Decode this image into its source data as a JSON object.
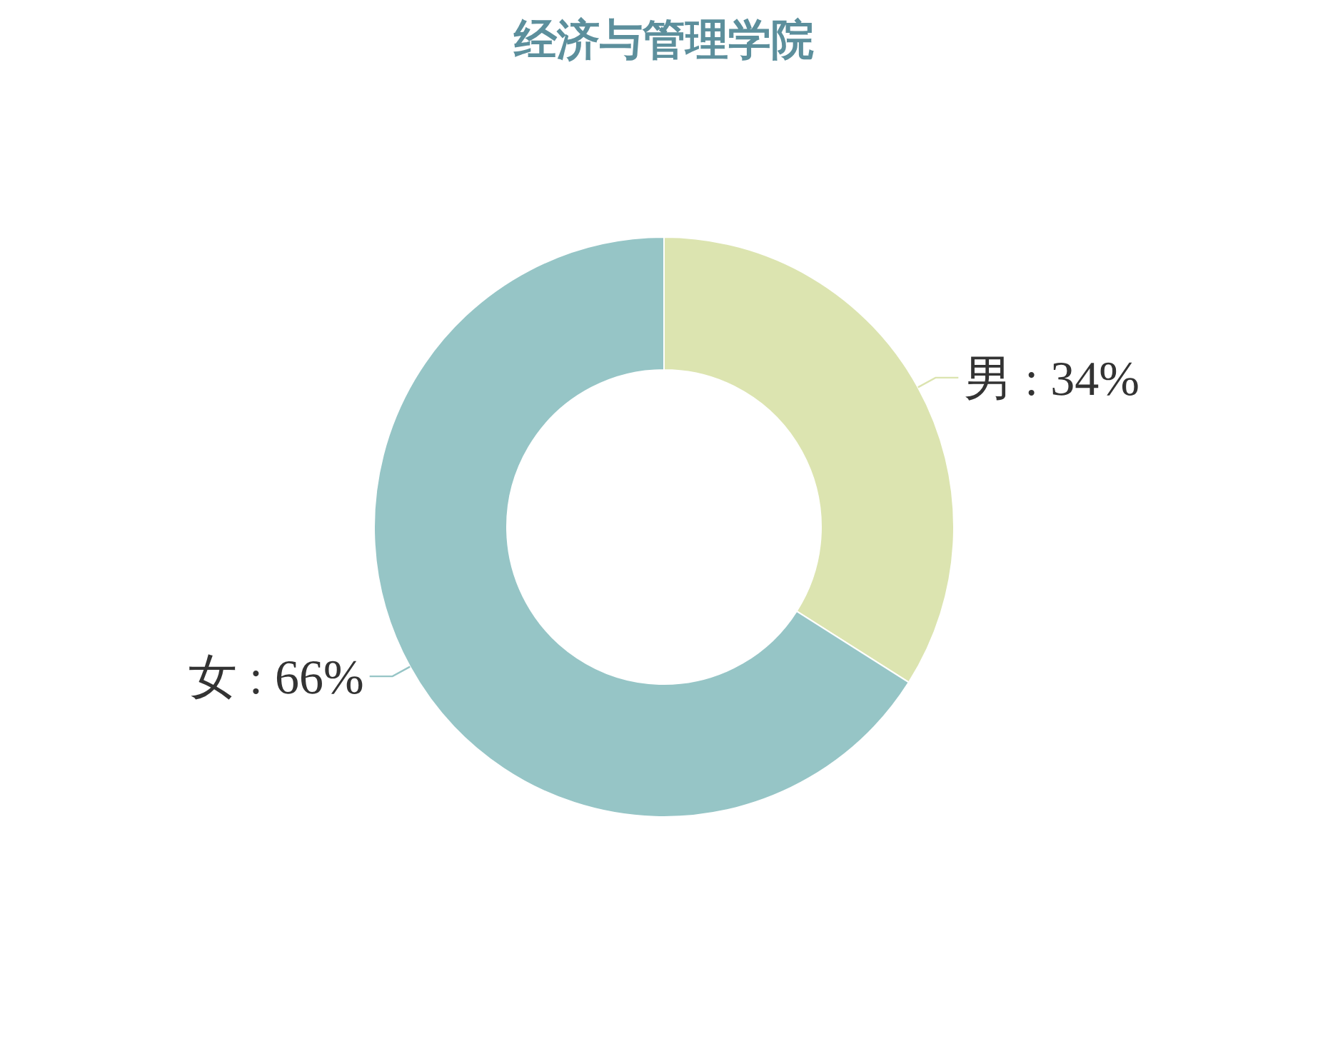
{
  "chart_data": {
    "type": "donut",
    "title": "经济与管理学院",
    "categories": [
      "男",
      "女"
    ],
    "values": [
      34,
      66
    ],
    "value_labels": [
      "34%",
      "66%"
    ],
    "colors": [
      "#dce4b0",
      "#96c5c6"
    ]
  }
}
